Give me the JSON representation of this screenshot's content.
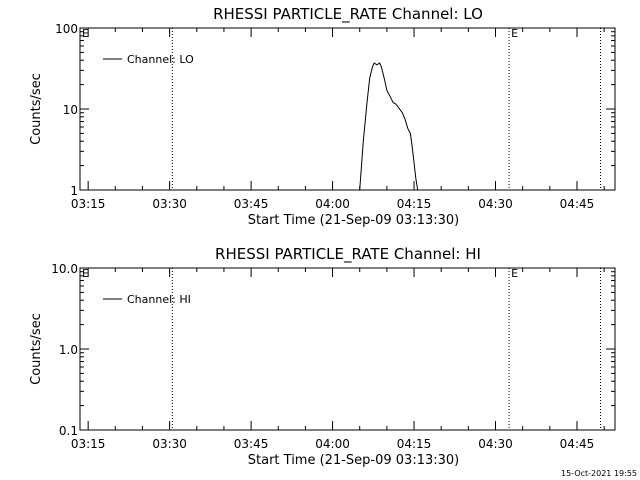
{
  "chart_data": [
    {
      "type": "line",
      "title": "RHESSI PARTICLE_RATE Channel: LO",
      "xlabel": "Start Time (21-Sep-09 03:13:30)",
      "ylabel": "Counts/sec",
      "yscale": "log",
      "ylim": [
        1,
        100
      ],
      "xlim": [
        "03:13:30",
        "04:52:00"
      ],
      "x_ticks": [
        "03:15",
        "03:30",
        "03:45",
        "04:00",
        "04:15",
        "04:30",
        "04:45"
      ],
      "y_ticks": [
        "1",
        "10",
        "100"
      ],
      "legend": {
        "position": "top-left",
        "entries": [
          "Channel: LO"
        ]
      },
      "series": [
        {
          "name": "Channel: LO",
          "x": [
            "04:05:00",
            "04:05:40",
            "04:06:20",
            "04:06:50",
            "04:07:20",
            "04:07:40",
            "04:08:10",
            "04:08:40",
            "04:09:00",
            "04:09:30",
            "04:10:00",
            "04:10:40",
            "04:11:10",
            "04:11:40",
            "04:12:20",
            "04:12:50",
            "04:13:20",
            "04:13:50",
            "04:14:20",
            "04:14:40",
            "04:15:00",
            "04:15:20",
            "04:15:40"
          ],
          "y": [
            1,
            4,
            12,
            24,
            33,
            37,
            35,
            37,
            33,
            24,
            17,
            14,
            12,
            11.5,
            10,
            9,
            7.5,
            5.8,
            5,
            3.4,
            2.2,
            1.4,
            1
          ]
        }
      ],
      "markers": [
        {
          "type": "dotted-vertical",
          "x": "03:30:30"
        },
        {
          "type": "dotted-vertical",
          "x": "04:32:30",
          "label": "E"
        },
        {
          "type": "dotted-vertical",
          "x": "04:49:20"
        },
        {
          "type": "label",
          "x": "03:13:30",
          "label": "E"
        }
      ]
    },
    {
      "type": "line",
      "title": "RHESSI PARTICLE_RATE Channel: HI",
      "xlabel": "Start Time (21-Sep-09 03:13:30)",
      "ylabel": "Counts/sec",
      "yscale": "log",
      "ylim": [
        0.1,
        10
      ],
      "xlim": [
        "03:13:30",
        "04:52:00"
      ],
      "x_ticks": [
        "03:15",
        "03:30",
        "03:45",
        "04:00",
        "04:15",
        "04:30",
        "04:45"
      ],
      "y_ticks": [
        "0.1",
        "1.0",
        "10.0"
      ],
      "legend": {
        "position": "top-left",
        "entries": [
          "Channel: HI"
        ]
      },
      "series": [
        {
          "name": "Channel: HI",
          "x": [],
          "y": []
        }
      ],
      "markers": [
        {
          "type": "dotted-vertical",
          "x": "03:30:30"
        },
        {
          "type": "dotted-vertical",
          "x": "04:32:30",
          "label": "E"
        },
        {
          "type": "dotted-vertical",
          "x": "04:49:20"
        },
        {
          "type": "label",
          "x": "03:13:30",
          "label": "E"
        }
      ]
    }
  ],
  "footer": {
    "timestamp": "15-Oct-2021 19:55"
  }
}
